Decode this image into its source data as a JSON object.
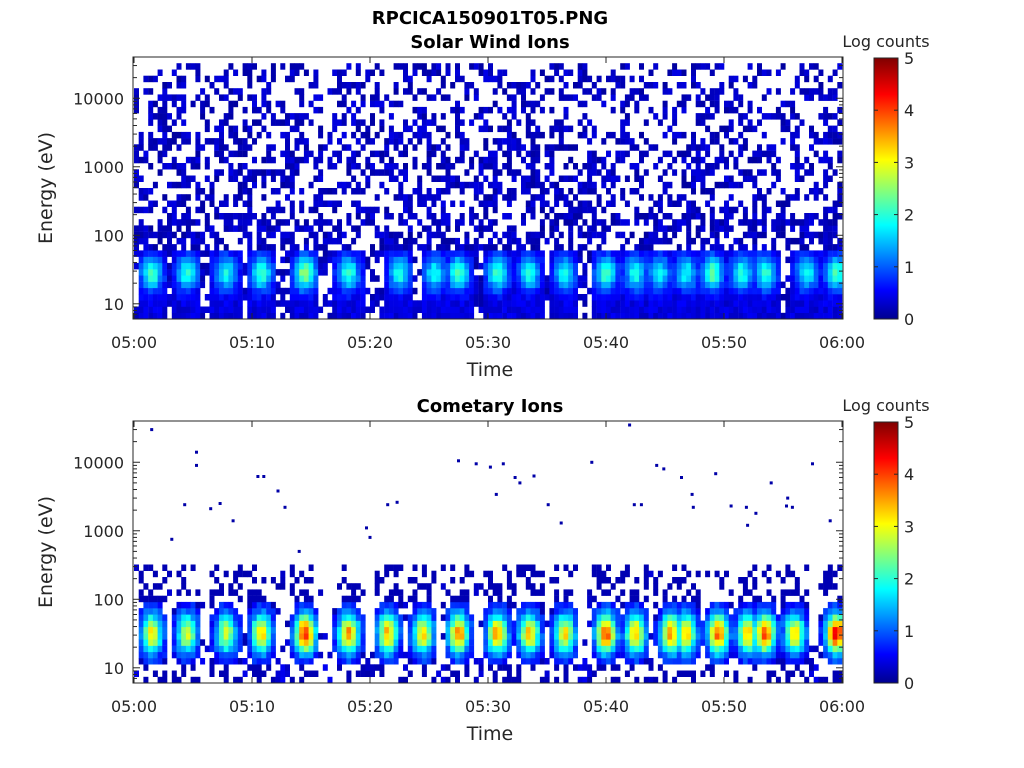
{
  "figure": {
    "title": "RPCICA150901T05.PNG"
  },
  "chart_data": [
    {
      "type": "heatmap",
      "title": "Solar Wind Ions",
      "xlabel": "Time",
      "ylabel": "Energy (eV)",
      "x_ticks": [
        "05:00",
        "05:10",
        "05:20",
        "05:30",
        "05:40",
        "05:50",
        "06:00"
      ],
      "x_range_minutes": [
        0,
        60
      ],
      "y_ticks": [
        "10",
        "100",
        "1000",
        "10000"
      ],
      "y_scale": "log",
      "y_range": [
        6,
        40000
      ],
      "colorbar": {
        "label": "Log counts",
        "ticks": [
          "0",
          "1",
          "2",
          "3",
          "4",
          "5"
        ],
        "range": [
          0,
          5
        ],
        "colormap": "jet"
      },
      "bursts_minutes": [
        1.5,
        4.5,
        7.8,
        10.8,
        14.5,
        18.2,
        22.5,
        25.5,
        27.5,
        30.8,
        33.5,
        36.5,
        40.0,
        42.5,
        44.5,
        46.8,
        49.0,
        51.5,
        53.5,
        57.0,
        59.5
      ],
      "burst_peak_log_counts": [
        1.8,
        1.6,
        1.5,
        1.8,
        2.2,
        1.7,
        1.6,
        1.5,
        1.8,
        1.8,
        1.6,
        1.5,
        1.8,
        1.6,
        1.5,
        1.5,
        1.9,
        1.6,
        1.7,
        1.5,
        1.8
      ],
      "background_max_energy_eV": 30000
    },
    {
      "type": "heatmap",
      "title": "Cometary Ions",
      "xlabel": "Time",
      "ylabel": "Energy (eV)",
      "x_ticks": [
        "05:00",
        "05:10",
        "05:20",
        "05:30",
        "05:40",
        "05:50",
        "06:00"
      ],
      "x_range_minutes": [
        0,
        60
      ],
      "y_ticks": [
        "10",
        "100",
        "1000",
        "10000"
      ],
      "y_scale": "log",
      "y_range": [
        6,
        40000
      ],
      "colorbar": {
        "label": "Log counts",
        "ticks": [
          "0",
          "1",
          "2",
          "3",
          "4",
          "5"
        ],
        "range": [
          0,
          5
        ],
        "colormap": "jet"
      },
      "bursts_minutes": [
        1.5,
        4.5,
        7.8,
        10.8,
        14.5,
        18.2,
        21.5,
        24.5,
        27.5,
        30.8,
        33.5,
        36.5,
        40.0,
        42.5,
        45.5,
        46.8,
        49.5,
        52.0,
        53.5,
        56.0,
        59.5
      ],
      "burst_peak_log_counts": [
        2.8,
        2.5,
        2.4,
        2.9,
        3.8,
        3.2,
        3.0,
        2.8,
        3.3,
        3.2,
        3.0,
        2.8,
        3.6,
        3.0,
        3.2,
        2.9,
        3.4,
        2.9,
        3.5,
        2.8,
        3.9
      ],
      "sparse_points": [
        [
          1.5,
          30000
        ],
        [
          5.3,
          14000
        ],
        [
          5.3,
          9000
        ],
        [
          4.3,
          2400
        ],
        [
          6.5,
          2100
        ],
        [
          7.3,
          2500
        ],
        [
          8.4,
          1400
        ],
        [
          10.5,
          6200
        ],
        [
          11.0,
          6200
        ],
        [
          12.2,
          3800
        ],
        [
          12.8,
          2200
        ],
        [
          3.2,
          750
        ],
        [
          14.0,
          500
        ],
        [
          19.7,
          1100
        ],
        [
          20.0,
          800
        ],
        [
          21.5,
          2400
        ],
        [
          22.3,
          2600
        ],
        [
          27.5,
          10500
        ],
        [
          29.0,
          9500
        ],
        [
          30.2,
          8500
        ],
        [
          30.7,
          3400
        ],
        [
          31.3,
          9500
        ],
        [
          32.3,
          6000
        ],
        [
          32.7,
          5000
        ],
        [
          33.9,
          6300
        ],
        [
          35.1,
          2400
        ],
        [
          36.2,
          1300
        ],
        [
          38.8,
          10000
        ],
        [
          42.0,
          35000
        ],
        [
          42.4,
          2400
        ],
        [
          43.0,
          2400
        ],
        [
          44.3,
          9000
        ],
        [
          44.9,
          8000
        ],
        [
          46.4,
          6000
        ],
        [
          47.3,
          3400
        ],
        [
          47.4,
          2200
        ],
        [
          49.3,
          6800
        ],
        [
          50.6,
          2300
        ],
        [
          51.9,
          2200
        ],
        [
          52.0,
          1200
        ],
        [
          52.7,
          1800
        ],
        [
          54.0,
          5000
        ],
        [
          55.3,
          2300
        ],
        [
          55.8,
          2200
        ],
        [
          55.4,
          3000
        ],
        [
          57.5,
          9500
        ],
        [
          59.0,
          1400
        ]
      ]
    }
  ]
}
